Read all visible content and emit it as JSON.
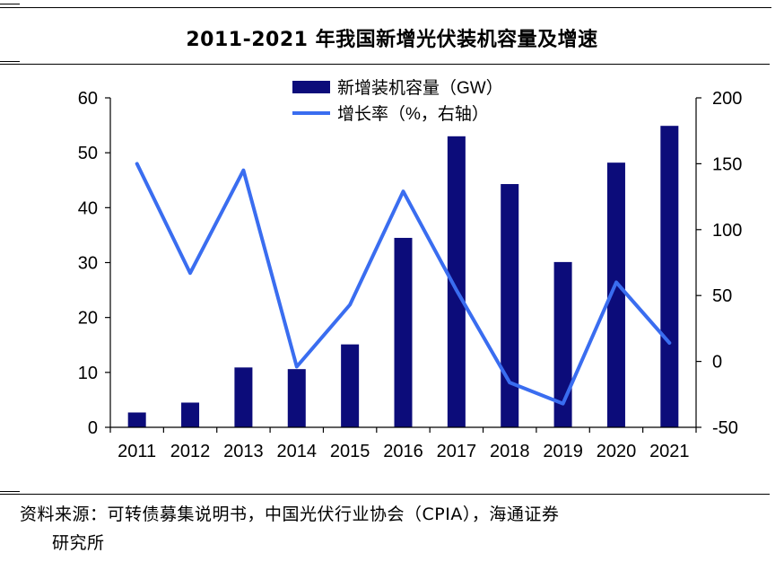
{
  "title": "2011-2021 年我国新增光伏装机容量及增速",
  "source": {
    "line1": "资料来源：可转债募集说明书，中国光伏行业协会（CPIA），海通证券",
    "line2": "研究所"
  },
  "colors": {
    "bar": "#0c0c7a",
    "line": "#3a6df0",
    "axis": "#000000"
  },
  "chart_data": {
    "type": "bar",
    "categories": [
      "2011",
      "2012",
      "2013",
      "2014",
      "2015",
      "2016",
      "2017",
      "2018",
      "2019",
      "2020",
      "2021"
    ],
    "series": [
      {
        "name": "新增装机容量（GW）",
        "type": "bar",
        "axis": "left",
        "values": [
          2.7,
          4.5,
          10.9,
          10.6,
          15.1,
          34.5,
          53.0,
          44.3,
          30.1,
          48.2,
          54.9
        ]
      },
      {
        "name": "增长率（%，右轴）",
        "type": "line",
        "axis": "right",
        "values": [
          150,
          67,
          145,
          -4,
          43,
          129,
          54,
          -16,
          -32,
          60,
          14
        ]
      }
    ],
    "y_left": {
      "min": 0,
      "max": 60,
      "ticks": [
        0,
        10,
        20,
        30,
        40,
        50,
        60
      ]
    },
    "y_right": {
      "min": -50,
      "max": 200,
      "ticks": [
        -50,
        0,
        50,
        100,
        150,
        200
      ]
    },
    "legend": "top-center",
    "grid": false
  }
}
